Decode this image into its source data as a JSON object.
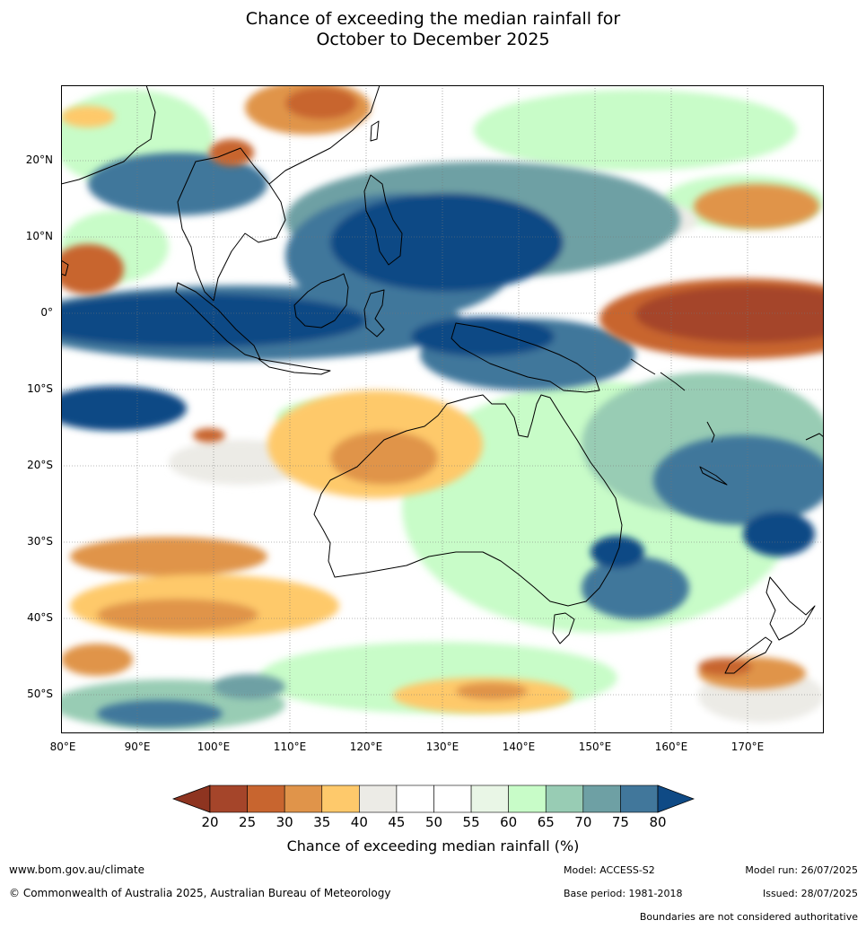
{
  "title": {
    "line1": "Chance of exceeding the median rainfall for",
    "line2": "October to December 2025"
  },
  "map": {
    "lat_labels": [
      "20°N",
      "10°N",
      "0°",
      "10°S",
      "20°S",
      "30°S",
      "40°S",
      "50°S"
    ],
    "lon_labels": [
      "80°E",
      "90°E",
      "100°E",
      "110°E",
      "120°E",
      "130°E",
      "140°E",
      "150°E",
      "160°E",
      "170°E"
    ]
  },
  "colorbar": {
    "ticks": [
      "20",
      "25",
      "30",
      "35",
      "40",
      "45",
      "50",
      "55",
      "60",
      "65",
      "70",
      "75",
      "80"
    ],
    "colors": [
      "#a5452a",
      "#c8652f",
      "#e0944a",
      "#fec96b",
      "#ecebe6",
      "#ffffff",
      "#ffffff",
      "#e9f6e6",
      "#c8fcc8",
      "#98ccb4",
      "#6ea0a4",
      "#41779b"
    ],
    "under_color": "#8e3420",
    "over_color": "#0f4a85",
    "label": "Chance of exceeding median rainfall (%)"
  },
  "footer": {
    "url": "www.bom.gov.au/climate",
    "copyright": "© Commonwealth of Australia 2025, Australian Bureau of Meteorology",
    "model": "Model: ACCESS-S2",
    "base_period": "Base period: 1981-2018",
    "model_run": "Model run: 26/07/2025",
    "issued": "Issued: 28/07/2025",
    "disclaimer": "Boundaries are not considered authoritative"
  }
}
